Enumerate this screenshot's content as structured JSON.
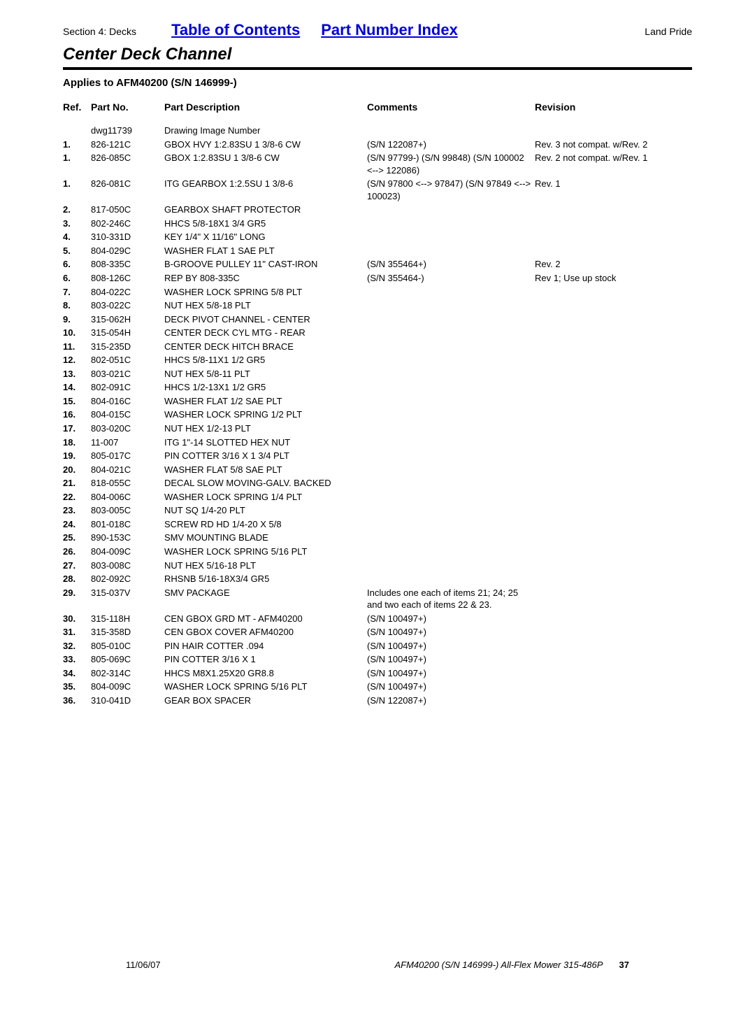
{
  "header": {
    "section_label": "Section 4: Decks",
    "toc_link": "Table of Contents",
    "pni_link": "Part Number Index",
    "brand": "Land Pride"
  },
  "title": "Center Deck Channel",
  "applies_to": "Applies to AFM40200 (S/N 146999-)",
  "columns": {
    "ref": "Ref.",
    "part_no": "Part No.",
    "description": "Part Description",
    "comments": "Comments",
    "revision": "Revision"
  },
  "rows": [
    {
      "ref": "",
      "part": "dwg11739",
      "desc": "Drawing Image Number",
      "comments": "",
      "rev": ""
    },
    {
      "ref": "1.",
      "part": "826-121C",
      "desc": "GBOX HVY 1:2.83SU 1 3/8-6 CW",
      "comments": "(S/N 122087+)",
      "rev": "Rev. 3 not compat. w/Rev. 2"
    },
    {
      "ref": "1.",
      "part": "826-085C",
      "desc": "GBOX 1:2.83SU 1 3/8-6 CW",
      "comments": "(S/N 97799-) (S/N 99848) (S/N 100002 <--> 122086)",
      "rev": "Rev. 2 not compat. w/Rev. 1"
    },
    {
      "ref": "1.",
      "part": "826-081C",
      "desc": "ITG GEARBOX 1:2.5SU 1 3/8-6",
      "comments": "(S/N 97800 <--> 97847) (S/N 97849 <--> 100023)",
      "rev": "Rev. 1"
    },
    {
      "ref": "2.",
      "part": "817-050C",
      "desc": "GEARBOX SHAFT PROTECTOR",
      "comments": "",
      "rev": ""
    },
    {
      "ref": "3.",
      "part": "802-246C",
      "desc": "HHCS 5/8-18X1 3/4 GR5",
      "comments": "",
      "rev": ""
    },
    {
      "ref": "4.",
      "part": "310-331D",
      "desc": "KEY 1/4\" X 11/16\" LONG",
      "comments": "",
      "rev": ""
    },
    {
      "ref": "5.",
      "part": "804-029C",
      "desc": "WASHER FLAT 1 SAE PLT",
      "comments": "",
      "rev": ""
    },
    {
      "ref": "6.",
      "part": "808-335C",
      "desc": "B-GROOVE PULLEY 11\" CAST-IRON",
      "comments": "(S/N 355464+)",
      "rev": "Rev. 2"
    },
    {
      "ref": "6.",
      "part": "808-126C",
      "desc": "REP BY 808-335C",
      "comments": "(S/N 355464-)",
      "rev": "Rev 1; Use up stock"
    },
    {
      "ref": "7.",
      "part": "804-022C",
      "desc": "WASHER LOCK SPRING 5/8 PLT",
      "comments": "",
      "rev": ""
    },
    {
      "ref": "8.",
      "part": "803-022C",
      "desc": "NUT HEX 5/8-18 PLT",
      "comments": "",
      "rev": ""
    },
    {
      "ref": "9.",
      "part": "315-062H",
      "desc": "DECK PIVOT CHANNEL - CENTER",
      "comments": "",
      "rev": ""
    },
    {
      "ref": "10.",
      "part": "315-054H",
      "desc": "CENTER DECK CYL MTG - REAR",
      "comments": "",
      "rev": ""
    },
    {
      "ref": "11.",
      "part": "315-235D",
      "desc": "CENTER DECK HITCH BRACE",
      "comments": "",
      "rev": ""
    },
    {
      "ref": "12.",
      "part": "802-051C",
      "desc": "HHCS 5/8-11X1 1/2 GR5",
      "comments": "",
      "rev": ""
    },
    {
      "ref": "13.",
      "part": "803-021C",
      "desc": "NUT HEX 5/8-11 PLT",
      "comments": "",
      "rev": ""
    },
    {
      "ref": "14.",
      "part": "802-091C",
      "desc": "HHCS 1/2-13X1 1/2 GR5",
      "comments": "",
      "rev": ""
    },
    {
      "ref": "15.",
      "part": "804-016C",
      "desc": "WASHER FLAT 1/2 SAE PLT",
      "comments": "",
      "rev": ""
    },
    {
      "ref": "16.",
      "part": "804-015C",
      "desc": "WASHER LOCK SPRING 1/2 PLT",
      "comments": "",
      "rev": ""
    },
    {
      "ref": "17.",
      "part": "803-020C",
      "desc": "NUT HEX 1/2-13 PLT",
      "comments": "",
      "rev": ""
    },
    {
      "ref": "18.",
      "part": "11-007",
      "desc": "ITG 1\"-14 SLOTTED HEX NUT",
      "comments": "",
      "rev": ""
    },
    {
      "ref": "19.",
      "part": "805-017C",
      "desc": "PIN COTTER 3/16 X 1 3/4 PLT",
      "comments": "",
      "rev": ""
    },
    {
      "ref": "20.",
      "part": "804-021C",
      "desc": "WASHER FLAT 5/8 SAE PLT",
      "comments": "",
      "rev": ""
    },
    {
      "ref": "21.",
      "part": "818-055C",
      "desc": "DECAL SLOW MOVING-GALV. BACKED",
      "comments": "",
      "rev": ""
    },
    {
      "ref": "22.",
      "part": "804-006C",
      "desc": "WASHER LOCK SPRING 1/4 PLT",
      "comments": "",
      "rev": ""
    },
    {
      "ref": "23.",
      "part": "803-005C",
      "desc": "NUT SQ 1/4-20 PLT",
      "comments": "",
      "rev": ""
    },
    {
      "ref": "24.",
      "part": "801-018C",
      "desc": "SCREW RD HD 1/4-20 X 5/8",
      "comments": "",
      "rev": ""
    },
    {
      "ref": "25.",
      "part": "890-153C",
      "desc": "SMV MOUNTING BLADE",
      "comments": "",
      "rev": ""
    },
    {
      "ref": "26.",
      "part": "804-009C",
      "desc": "WASHER LOCK SPRING 5/16 PLT",
      "comments": "",
      "rev": ""
    },
    {
      "ref": "27.",
      "part": "803-008C",
      "desc": "NUT HEX 5/16-18 PLT",
      "comments": "",
      "rev": ""
    },
    {
      "ref": "28.",
      "part": "802-092C",
      "desc": "RHSNB 5/16-18X3/4 GR5",
      "comments": "",
      "rev": ""
    },
    {
      "ref": "29.",
      "part": "315-037V",
      "desc": "SMV PACKAGE",
      "comments": "Includes one each of items 21; 24; 25 and two each of items 22 & 23.",
      "rev": ""
    },
    {
      "ref": "30.",
      "part": "315-118H",
      "desc": "CEN GBOX GRD MT - AFM40200",
      "comments": "(S/N 100497+)",
      "rev": ""
    },
    {
      "ref": "31.",
      "part": "315-358D",
      "desc": "CEN GBOX COVER AFM40200",
      "comments": "(S/N 100497+)",
      "rev": ""
    },
    {
      "ref": "32.",
      "part": "805-010C",
      "desc": "PIN HAIR COTTER .094",
      "comments": "(S/N 100497+)",
      "rev": ""
    },
    {
      "ref": "33.",
      "part": "805-069C",
      "desc": "PIN COTTER 3/16 X 1",
      "comments": "(S/N 100497+)",
      "rev": ""
    },
    {
      "ref": "34.",
      "part": "802-314C",
      "desc": "HHCS M8X1.25X20 GR8.8",
      "comments": "(S/N 100497+)",
      "rev": ""
    },
    {
      "ref": "35.",
      "part": "804-009C",
      "desc": "WASHER LOCK SPRING 5/16 PLT",
      "comments": "(S/N 100497+)",
      "rev": ""
    },
    {
      "ref": "36.",
      "part": "310-041D",
      "desc": "GEAR BOX SPACER",
      "comments": "(S/N 122087+)",
      "rev": ""
    }
  ],
  "footer": {
    "date": "11/06/07",
    "doc": "AFM40200 (S/N 146999-) All-Flex Mower 315-486P",
    "page": "37"
  }
}
